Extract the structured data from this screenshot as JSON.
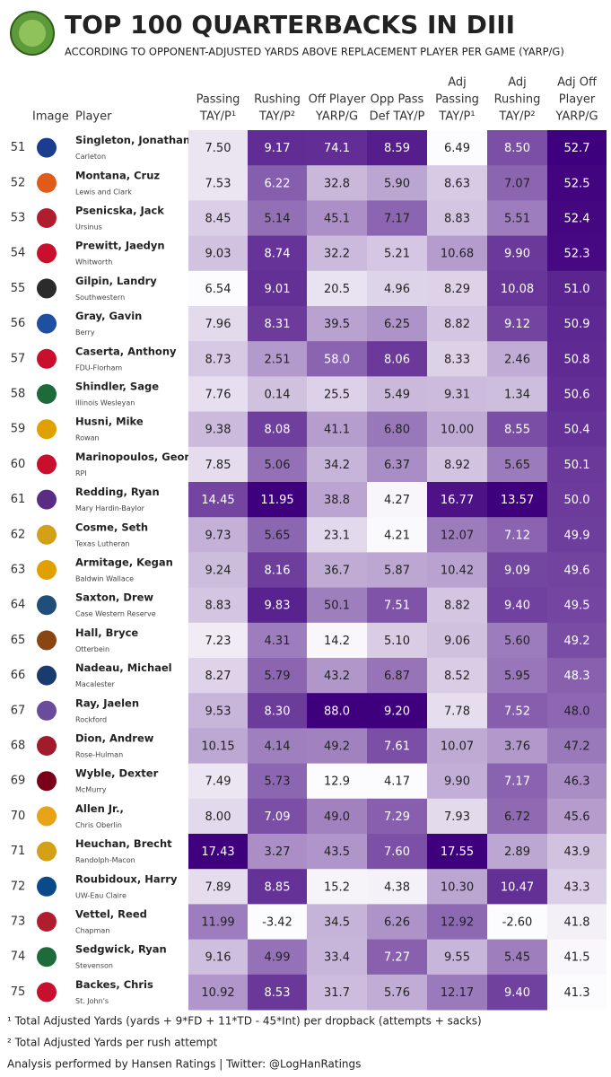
{
  "header": {
    "title": "TOP 100 QUARTERBACKS IN DIII",
    "subtitle": "ACCORDING TO OPPONENT-ADJUSTED YARDS ABOVE REPLACEMENT PLAYER PER GAME (YARP/G)"
  },
  "table": {
    "columns": [
      [
        "Image"
      ],
      [
        "Player"
      ],
      [
        "Passing",
        "TAY/P¹"
      ],
      [
        "Rushing",
        "TAY/P²"
      ],
      [
        "Off Player",
        "YARP/G"
      ],
      [
        "Opp Pass",
        "Def TAY/P"
      ],
      [
        "Adj",
        "Passing",
        "TAY/P¹"
      ],
      [
        "Adj",
        "Rushing",
        "TAY/P²"
      ],
      [
        "Adj Off",
        "Player",
        "YARP/G"
      ]
    ],
    "rows": [
      {
        "rank": "51",
        "player": "Singleton, Jonathan",
        "school": "Carleton",
        "values": [
          "7.50",
          "9.17",
          "74.1",
          "8.59",
          "6.49",
          "8.50",
          "52.7"
        ]
      },
      {
        "rank": "52",
        "player": "Montana, Cruz",
        "school": "Lewis and Clark",
        "values": [
          "7.53",
          "6.22",
          "32.8",
          "5.90",
          "8.63",
          "7.07",
          "52.5"
        ]
      },
      {
        "rank": "53",
        "player": "Psenicska, Jack",
        "school": "Ursinus",
        "values": [
          "8.45",
          "5.14",
          "45.1",
          "7.17",
          "8.83",
          "5.51",
          "52.4"
        ]
      },
      {
        "rank": "54",
        "player": "Prewitt, Jaedyn",
        "school": "Whitworth",
        "values": [
          "9.03",
          "8.74",
          "32.2",
          "5.21",
          "10.68",
          "9.90",
          "52.3"
        ]
      },
      {
        "rank": "55",
        "player": "Gilpin, Landry",
        "school": "Southwestern",
        "values": [
          "6.54",
          "9.01",
          "20.5",
          "4.96",
          "8.29",
          "10.08",
          "51.0"
        ]
      },
      {
        "rank": "56",
        "player": "Gray, Gavin",
        "school": "Berry",
        "values": [
          "7.96",
          "8.31",
          "39.5",
          "6.25",
          "8.82",
          "9.12",
          "50.9"
        ]
      },
      {
        "rank": "57",
        "player": "Caserta, Anthony",
        "school": "FDU-Florham",
        "values": [
          "8.73",
          "2.51",
          "58.0",
          "8.06",
          "8.33",
          "2.46",
          "50.8"
        ]
      },
      {
        "rank": "58",
        "player": "Shindler, Sage",
        "school": "Illinois Wesleyan",
        "values": [
          "7.76",
          "0.14",
          "25.5",
          "5.49",
          "9.31",
          "1.34",
          "50.6"
        ]
      },
      {
        "rank": "59",
        "player": "Husni, Mike",
        "school": "Rowan",
        "values": [
          "9.38",
          "8.08",
          "41.1",
          "6.80",
          "10.00",
          "8.55",
          "50.4"
        ]
      },
      {
        "rank": "60",
        "player": "Marinopoulos, George",
        "school": "RPI",
        "values": [
          "7.85",
          "5.06",
          "34.2",
          "6.37",
          "8.92",
          "5.65",
          "50.1"
        ]
      },
      {
        "rank": "61",
        "player": "Redding, Ryan",
        "school": "Mary Hardin-Baylor",
        "values": [
          "14.45",
          "11.95",
          "38.8",
          "4.27",
          "16.77",
          "13.57",
          "50.0"
        ]
      },
      {
        "rank": "62",
        "player": "Cosme, Seth",
        "school": "Texas Lutheran",
        "values": [
          "9.73",
          "5.65",
          "23.1",
          "4.21",
          "12.07",
          "7.12",
          "49.9"
        ]
      },
      {
        "rank": "63",
        "player": "Armitage, Kegan",
        "school": "Baldwin Wallace",
        "values": [
          "9.24",
          "8.16",
          "36.7",
          "5.87",
          "10.42",
          "9.09",
          "49.6"
        ]
      },
      {
        "rank": "64",
        "player": "Saxton, Drew",
        "school": "Case Western Reserve",
        "values": [
          "8.83",
          "9.83",
          "50.1",
          "7.51",
          "8.82",
          "9.40",
          "49.5"
        ]
      },
      {
        "rank": "65",
        "player": "Hall, Bryce",
        "school": "Otterbein",
        "values": [
          "7.23",
          "4.31",
          "14.2",
          "5.10",
          "9.06",
          "5.60",
          "49.2"
        ]
      },
      {
        "rank": "66",
        "player": "Nadeau, Michael",
        "school": "Macalester",
        "values": [
          "8.27",
          "5.79",
          "43.2",
          "6.87",
          "8.52",
          "5.95",
          "48.3"
        ]
      },
      {
        "rank": "67",
        "player": "Ray, Jaelen",
        "school": "Rockford",
        "values": [
          "9.53",
          "8.30",
          "88.0",
          "9.20",
          "7.78",
          "7.52",
          "48.0"
        ]
      },
      {
        "rank": "68",
        "player": "Dion, Andrew",
        "school": "Rose-Hulman",
        "values": [
          "10.15",
          "4.14",
          "49.2",
          "7.61",
          "10.07",
          "3.76",
          "47.2"
        ]
      },
      {
        "rank": "69",
        "player": "Wyble, Dexter",
        "school": "McMurry",
        "values": [
          "7.49",
          "5.73",
          "12.9",
          "4.17",
          "9.90",
          "7.17",
          "46.3"
        ]
      },
      {
        "rank": "70",
        "player": "Allen Jr.,",
        "school": "Chris Oberlin",
        "values": [
          "8.00",
          "7.09",
          "49.0",
          "7.29",
          "7.93",
          "6.72",
          "45.6"
        ]
      },
      {
        "rank": "71",
        "player": "Heuchan, Brecht",
        "school": "Randolph-Macon",
        "values": [
          "17.43",
          "3.27",
          "43.5",
          "7.60",
          "17.55",
          "2.89",
          "43.9"
        ]
      },
      {
        "rank": "72",
        "player": "Roubidoux, Harry",
        "school": "UW-Eau Claire",
        "values": [
          "7.89",
          "8.85",
          "15.2",
          "4.38",
          "10.30",
          "10.47",
          "43.3"
        ]
      },
      {
        "rank": "73",
        "player": "Vettel, Reed",
        "school": "Chapman",
        "values": [
          "11.99",
          "-3.42",
          "34.5",
          "6.26",
          "12.92",
          "-2.60",
          "41.8"
        ]
      },
      {
        "rank": "74",
        "player": "Sedgwick, Ryan",
        "school": "Stevenson",
        "values": [
          "9.16",
          "4.99",
          "33.4",
          "7.27",
          "9.55",
          "5.45",
          "41.5"
        ]
      },
      {
        "rank": "75",
        "player": "Backes, Chris",
        "school": "St. John's",
        "values": [
          "10.92",
          "8.53",
          "31.7",
          "5.76",
          "12.17",
          "9.40",
          "41.3"
        ]
      }
    ]
  },
  "footnotes": [
    "¹ Total Adjusted Yards (yards + 9*FD + 11*TD - 45*Int) per dropback (attempts + sacks)",
    "² Total Adjusted Yards per rush attempt"
  ],
  "footer": "Analysis performed by Hansen Ratings | Twitter: @LogHanRatings"
}
